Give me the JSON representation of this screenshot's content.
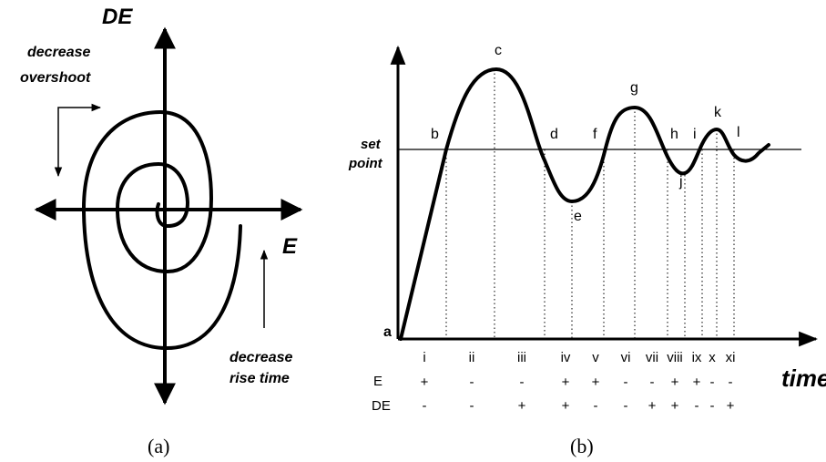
{
  "panel_a": {
    "caption": "(a)",
    "y_axis_label": "DE",
    "x_axis_label": "E",
    "annotation_top": [
      "decrease",
      "overshoot"
    ],
    "annotation_bottom": [
      "decrease",
      "rise time"
    ]
  },
  "panel_b": {
    "caption": "(b)",
    "x_axis_label": "time",
    "setpoint_label": [
      "set",
      "point"
    ],
    "points": {
      "a": "a",
      "b": "b",
      "c": "c",
      "d": "d",
      "e": "e",
      "f": "f",
      "g": "g",
      "h": "h",
      "i": "i",
      "j": "j",
      "k": "k",
      "l": "l"
    },
    "row_e_label": "E",
    "row_de_label": "DE",
    "intervals": [
      {
        "name": "i",
        "E": "+",
        "DE": "-"
      },
      {
        "name": "ii",
        "E": "-",
        "DE": "-"
      },
      {
        "name": "iii",
        "E": "-",
        "DE": "+"
      },
      {
        "name": "iv",
        "E": "+",
        "DE": "+"
      },
      {
        "name": "v",
        "E": "+",
        "DE": "-"
      },
      {
        "name": "vi",
        "E": "-",
        "DE": "-"
      },
      {
        "name": "vii",
        "E": "-",
        "DE": "+"
      },
      {
        "name": "viii",
        "E": "+",
        "DE": "+"
      },
      {
        "name": "ix",
        "E": "+",
        "DE": "-"
      },
      {
        "name": "x",
        "E": "-",
        "DE": "-"
      },
      {
        "name": "xi",
        "E": "-",
        "DE": "+"
      }
    ]
  }
}
